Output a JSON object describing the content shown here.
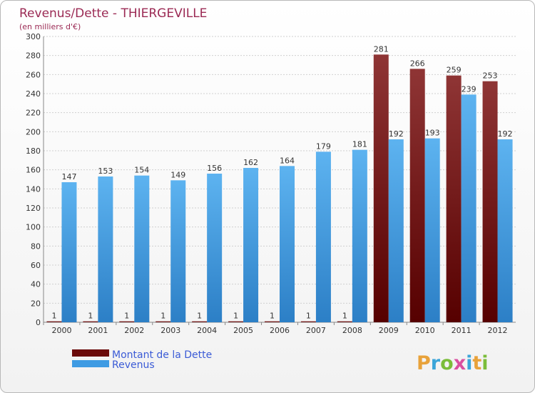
{
  "chart_data": {
    "type": "bar",
    "title": "Revenus/Dette - THIERGEVILLE",
    "subtitle": "(en milliers d'€)",
    "categories": [
      "2000",
      "2001",
      "2002",
      "2003",
      "2004",
      "2005",
      "2006",
      "2007",
      "2008",
      "2009",
      "2010",
      "2011",
      "2012"
    ],
    "series": [
      {
        "name": "Montant de la Dette",
        "color": "#6b0a0a",
        "values": [
          1,
          1,
          1,
          1,
          1,
          1,
          1,
          1,
          1,
          281,
          266,
          259,
          253
        ]
      },
      {
        "name": "Revenus",
        "color": "#3f9be3",
        "values": [
          147,
          153,
          154,
          149,
          156,
          162,
          164,
          179,
          181,
          192,
          193,
          239,
          192
        ]
      }
    ],
    "ylim": [
      0,
      300
    ],
    "yticks": [
      0,
      20,
      40,
      60,
      80,
      100,
      120,
      140,
      160,
      180,
      200,
      220,
      240,
      260,
      280,
      300
    ],
    "grid": true,
    "legend_position": "bottom-left"
  },
  "logo": {
    "text": "Proxiti",
    "colors": [
      "#e8a23a",
      "#3ba5d9",
      "#7bbd3a",
      "#d94fa0",
      "#3ba5d9",
      "#e8a23a",
      "#7bbd3a"
    ]
  }
}
